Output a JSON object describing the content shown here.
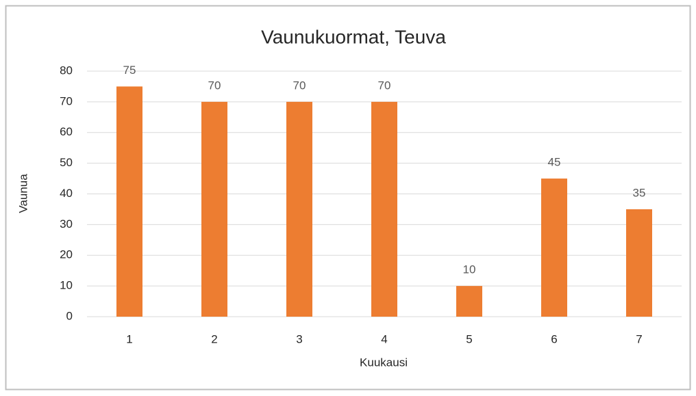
{
  "chart_data": {
    "type": "bar",
    "title": "Vaunukuormat, Teuva",
    "x_label": "Kuukausi",
    "y_label": "Vaunua",
    "categories": [
      "1",
      "2",
      "3",
      "4",
      "5",
      "6",
      "7"
    ],
    "values": [
      75,
      70,
      70,
      70,
      10,
      45,
      35
    ],
    "color": "#ed7d31",
    "ylim": [
      0,
      80
    ],
    "yticks": [
      0,
      10,
      20,
      30,
      40,
      50,
      60,
      70,
      80
    ],
    "grid": true,
    "data_labels": true
  }
}
